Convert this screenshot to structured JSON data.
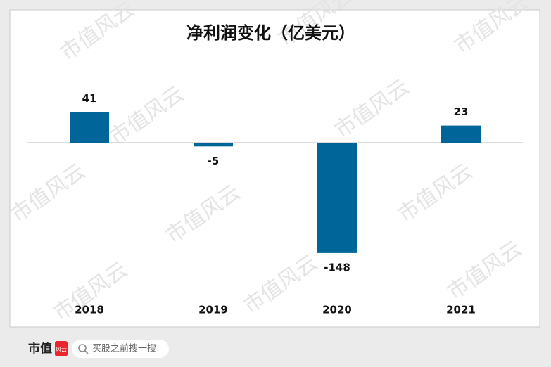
{
  "chart_data": {
    "type": "bar",
    "title": "净利润变化（亿美元）",
    "categories": [
      "2018",
      "2019",
      "2020",
      "2021"
    ],
    "values": [
      41,
      -5,
      -148,
      23
    ],
    "color": "#006699",
    "ylim": [
      -160,
      60
    ],
    "grid": false
  },
  "watermark": "市值风云",
  "footer": {
    "logo_text": "市值",
    "logo_mark": "风云",
    "search_placeholder": "买股之前搜一搜"
  }
}
